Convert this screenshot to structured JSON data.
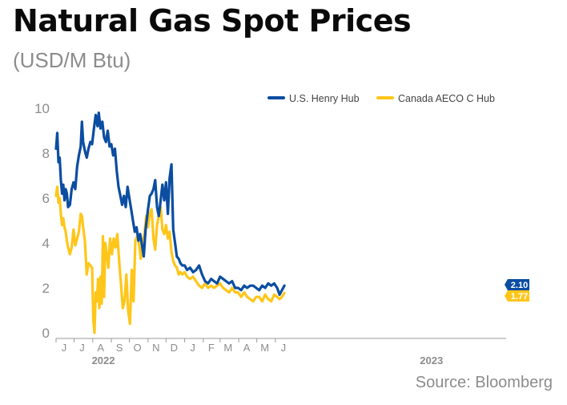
{
  "title": "Natural Gas Spot Prices",
  "subtitle": "(USD/M Btu)",
  "source": "Source: Bloomberg",
  "colors": {
    "henry": "#0b4da1",
    "aeco": "#ffc61a",
    "axis": "#9a9a9a",
    "tick_text": "#8c8c8c"
  },
  "chart_data": {
    "type": "line",
    "title": "Natural Gas Spot Prices",
    "subtitle": "(USD/M Btu)",
    "xlabel": "",
    "ylabel": "",
    "ylim": [
      0,
      10
    ],
    "xlim": [
      "2021-06-01",
      "2023-06-20"
    ],
    "y_ticks": [
      0,
      2,
      4,
      6,
      8,
      10
    ],
    "x_ticks": [
      {
        "date": "2021-06-01",
        "label": "J"
      },
      {
        "date": "2021-07-01",
        "label": "J"
      },
      {
        "date": "2021-08-01",
        "label": "A"
      },
      {
        "date": "2021-09-01",
        "label": "S"
      },
      {
        "date": "2021-10-01",
        "label": "O"
      },
      {
        "date": "2021-11-01",
        "label": "N"
      },
      {
        "date": "2021-12-01",
        "label": "D"
      },
      {
        "date": "2022-01-01",
        "label": "J"
      },
      {
        "date": "2022-02-01",
        "label": "F"
      },
      {
        "date": "2022-03-01",
        "label": "M"
      },
      {
        "date": "2022-04-01",
        "label": "A"
      },
      {
        "date": "2022-05-01",
        "label": "M"
      },
      {
        "date": "2022-06-01",
        "label": "J"
      }
    ],
    "year_labels": [
      {
        "date": "2021-09-01",
        "label": "2022"
      },
      {
        "date": "2023-03-01",
        "label": "2023"
      }
    ],
    "grid": false,
    "legend": "top-right",
    "series": [
      {
        "name": "U.S. Henry Hub",
        "color": "#0b4da1",
        "end_label": "2.10",
        "points": [
          [
            "2021-06-01",
            8.2
          ],
          [
            "2021-06-03",
            8.9
          ],
          [
            "2021-06-05",
            7.6
          ],
          [
            "2021-06-07",
            7.8
          ],
          [
            "2021-06-09",
            6.8
          ],
          [
            "2021-06-11",
            6.2
          ],
          [
            "2021-06-13",
            6.6
          ],
          [
            "2021-06-15",
            5.9
          ],
          [
            "2021-06-17",
            6.4
          ],
          [
            "2021-06-19",
            6.2
          ],
          [
            "2021-06-21",
            5.6
          ],
          [
            "2021-06-24",
            5.7
          ],
          [
            "2021-06-27",
            6.4
          ],
          [
            "2021-06-30",
            6.7
          ],
          [
            "2021-07-03",
            6.4
          ],
          [
            "2021-07-06",
            7.4
          ],
          [
            "2021-07-09",
            7.9
          ],
          [
            "2021-07-12",
            8.3
          ],
          [
            "2021-07-14",
            9.4
          ],
          [
            "2021-07-16",
            8.5
          ],
          [
            "2021-07-19",
            8.1
          ],
          [
            "2021-07-22",
            7.8
          ],
          [
            "2021-07-25",
            8.2
          ],
          [
            "2021-07-28",
            8.5
          ],
          [
            "2021-07-31",
            8.4
          ],
          [
            "2021-08-03",
            9.1
          ],
          [
            "2021-08-06",
            9.7
          ],
          [
            "2021-08-09",
            9.2
          ],
          [
            "2021-08-11",
            9.8
          ],
          [
            "2021-08-14",
            9.1
          ],
          [
            "2021-08-17",
            9.4
          ],
          [
            "2021-08-20",
            8.7
          ],
          [
            "2021-08-23",
            8.5
          ],
          [
            "2021-08-26",
            9.0
          ],
          [
            "2021-08-29",
            8.3
          ],
          [
            "2021-09-01",
            8.4
          ],
          [
            "2021-09-04",
            7.9
          ],
          [
            "2021-09-07",
            8.2
          ],
          [
            "2021-09-10",
            7.2
          ],
          [
            "2021-09-13",
            6.5
          ],
          [
            "2021-09-16",
            6.1
          ],
          [
            "2021-09-19",
            5.7
          ],
          [
            "2021-09-22",
            6.1
          ],
          [
            "2021-09-25",
            5.6
          ],
          [
            "2021-09-28",
            6.5
          ],
          [
            "2021-10-01",
            6.0
          ],
          [
            "2021-10-04",
            5.5
          ],
          [
            "2021-10-07",
            5.0
          ],
          [
            "2021-10-10",
            4.5
          ],
          [
            "2021-10-13",
            4.7
          ],
          [
            "2021-10-16",
            4.1
          ],
          [
            "2021-10-19",
            4.4
          ],
          [
            "2021-10-22",
            3.9
          ],
          [
            "2021-10-25",
            3.4
          ],
          [
            "2021-10-28",
            4.6
          ],
          [
            "2021-11-01",
            5.5
          ],
          [
            "2021-11-04",
            6.1
          ],
          [
            "2021-11-07",
            6.2
          ],
          [
            "2021-11-10",
            6.4
          ],
          [
            "2021-11-13",
            6.8
          ],
          [
            "2021-11-16",
            5.6
          ],
          [
            "2021-11-19",
            5.2
          ],
          [
            "2021-11-22",
            5.9
          ],
          [
            "2021-11-25",
            6.6
          ],
          [
            "2021-11-28",
            5.9
          ],
          [
            "2021-12-01",
            6.7
          ],
          [
            "2021-12-04",
            5.3
          ],
          [
            "2021-12-07",
            6.9
          ],
          [
            "2021-12-10",
            7.5
          ],
          [
            "2021-12-13",
            4.6
          ],
          [
            "2021-12-16",
            4.0
          ],
          [
            "2021-12-19",
            3.4
          ],
          [
            "2021-12-22",
            3.3
          ],
          [
            "2021-12-25",
            3.1
          ],
          [
            "2021-12-28",
            3.0
          ],
          [
            "2022-01-01",
            3.0
          ],
          [
            "2022-01-05",
            2.8
          ],
          [
            "2022-01-10",
            2.9
          ],
          [
            "2022-01-15",
            2.7
          ],
          [
            "2022-01-20",
            2.8
          ],
          [
            "2022-01-25",
            3.0
          ],
          [
            "2022-01-30",
            2.6
          ],
          [
            "2022-02-04",
            2.3
          ],
          [
            "2022-02-09",
            2.2
          ],
          [
            "2022-02-14",
            2.4
          ],
          [
            "2022-02-19",
            2.3
          ],
          [
            "2022-02-24",
            2.2
          ],
          [
            "2022-03-01",
            2.5
          ],
          [
            "2022-03-06",
            2.4
          ],
          [
            "2022-03-11",
            2.3
          ],
          [
            "2022-03-16",
            2.2
          ],
          [
            "2022-03-21",
            2.3
          ],
          [
            "2022-03-26",
            2.0
          ],
          [
            "2022-03-31",
            2.0
          ],
          [
            "2022-04-05",
            1.9
          ],
          [
            "2022-04-10",
            2.1
          ],
          [
            "2022-04-15",
            2.0
          ],
          [
            "2022-04-20",
            2.1
          ],
          [
            "2022-04-25",
            2.1
          ],
          [
            "2022-04-30",
            2.0
          ],
          [
            "2022-05-05",
            1.9
          ],
          [
            "2022-05-10",
            2.1
          ],
          [
            "2022-05-15",
            2.0
          ],
          [
            "2022-05-20",
            2.2
          ],
          [
            "2022-05-25",
            2.1
          ],
          [
            "2022-05-30",
            2.2
          ],
          [
            "2022-06-04",
            2.0
          ],
          [
            "2022-06-08",
            1.7
          ],
          [
            "2022-06-12",
            1.9
          ],
          [
            "2022-06-16",
            2.1
          ]
        ]
      },
      {
        "name": "Canada AECO C Hub",
        "color": "#ffc61a",
        "end_label": "1.77",
        "points": [
          [
            "2021-06-01",
            6.1
          ],
          [
            "2021-06-03",
            6.5
          ],
          [
            "2021-06-05",
            5.8
          ],
          [
            "2021-06-07",
            6.0
          ],
          [
            "2021-06-09",
            5.3
          ],
          [
            "2021-06-11",
            4.8
          ],
          [
            "2021-06-13",
            5.1
          ],
          [
            "2021-06-15",
            4.7
          ],
          [
            "2021-06-17",
            4.5
          ],
          [
            "2021-06-19",
            4.1
          ],
          [
            "2021-06-21",
            3.8
          ],
          [
            "2021-06-24",
            3.5
          ],
          [
            "2021-06-27",
            3.8
          ],
          [
            "2021-06-30",
            4.6
          ],
          [
            "2021-07-03",
            3.9
          ],
          [
            "2021-07-06",
            4.2
          ],
          [
            "2021-07-09",
            4.5
          ],
          [
            "2021-07-12",
            5.3
          ],
          [
            "2021-07-14",
            5.2
          ],
          [
            "2021-07-16",
            4.7
          ],
          [
            "2021-07-19",
            4.1
          ],
          [
            "2021-07-22",
            2.6
          ],
          [
            "2021-07-25",
            3.1
          ],
          [
            "2021-07-28",
            3.0
          ],
          [
            "2021-07-31",
            2.9
          ],
          [
            "2021-08-02",
            0.6
          ],
          [
            "2021-08-04",
            0.0
          ],
          [
            "2021-08-06",
            1.8
          ],
          [
            "2021-08-08",
            1.4
          ],
          [
            "2021-08-10",
            2.4
          ],
          [
            "2021-08-12",
            1.1
          ],
          [
            "2021-08-14",
            2.5
          ],
          [
            "2021-08-16",
            1.3
          ],
          [
            "2021-08-18",
            4.3
          ],
          [
            "2021-08-20",
            1.6
          ],
          [
            "2021-08-22",
            4.0
          ],
          [
            "2021-08-24",
            3.6
          ],
          [
            "2021-08-27",
            2.9
          ],
          [
            "2021-08-30",
            4.2
          ],
          [
            "2021-09-02",
            3.5
          ],
          [
            "2021-09-05",
            4.2
          ],
          [
            "2021-09-08",
            3.8
          ],
          [
            "2021-09-11",
            4.4
          ],
          [
            "2021-09-14",
            3.2
          ],
          [
            "2021-09-17",
            2.2
          ],
          [
            "2021-09-20",
            1.1
          ],
          [
            "2021-09-23",
            1.4
          ],
          [
            "2021-09-26",
            2.6
          ],
          [
            "2021-09-29",
            1.0
          ],
          [
            "2021-10-02",
            0.4
          ],
          [
            "2021-10-05",
            2.8
          ],
          [
            "2021-10-08",
            1.4
          ],
          [
            "2021-10-11",
            4.1
          ],
          [
            "2021-10-14",
            4.3
          ],
          [
            "2021-10-17",
            4.0
          ],
          [
            "2021-10-20",
            3.3
          ],
          [
            "2021-10-23",
            4.0
          ],
          [
            "2021-10-26",
            4.4
          ],
          [
            "2021-10-29",
            5.2
          ],
          [
            "2021-11-01",
            4.7
          ],
          [
            "2021-11-04",
            5.3
          ],
          [
            "2021-11-07",
            5.5
          ],
          [
            "2021-11-10",
            4.2
          ],
          [
            "2021-11-13",
            3.7
          ],
          [
            "2021-11-16",
            4.8
          ],
          [
            "2021-11-19",
            5.2
          ],
          [
            "2021-11-22",
            5.6
          ],
          [
            "2021-11-25",
            4.6
          ],
          [
            "2021-11-28",
            4.4
          ],
          [
            "2021-12-01",
            4.8
          ],
          [
            "2021-12-04",
            4.2
          ],
          [
            "2021-12-07",
            4.5
          ],
          [
            "2021-12-10",
            3.6
          ],
          [
            "2021-12-13",
            3.2
          ],
          [
            "2021-12-16",
            3.0
          ],
          [
            "2021-12-19",
            2.9
          ],
          [
            "2021-12-22",
            2.6
          ],
          [
            "2021-12-25",
            2.7
          ],
          [
            "2021-12-28",
            2.6
          ],
          [
            "2022-01-01",
            2.7
          ],
          [
            "2022-01-05",
            2.5
          ],
          [
            "2022-01-10",
            2.4
          ],
          [
            "2022-01-15",
            2.5
          ],
          [
            "2022-01-20",
            2.3
          ],
          [
            "2022-01-25",
            2.1
          ],
          [
            "2022-01-30",
            2.0
          ],
          [
            "2022-02-04",
            2.2
          ],
          [
            "2022-02-09",
            2.0
          ],
          [
            "2022-02-14",
            2.1
          ],
          [
            "2022-02-19",
            2.0
          ],
          [
            "2022-02-24",
            2.1
          ],
          [
            "2022-03-01",
            2.2
          ],
          [
            "2022-03-06",
            2.0
          ],
          [
            "2022-03-11",
            1.9
          ],
          [
            "2022-03-16",
            1.8
          ],
          [
            "2022-03-21",
            2.0
          ],
          [
            "2022-03-26",
            1.8
          ],
          [
            "2022-03-31",
            1.8
          ],
          [
            "2022-04-05",
            1.6
          ],
          [
            "2022-04-10",
            1.8
          ],
          [
            "2022-04-15",
            1.6
          ],
          [
            "2022-04-20",
            1.5
          ],
          [
            "2022-04-25",
            1.4
          ],
          [
            "2022-04-30",
            1.6
          ],
          [
            "2022-05-05",
            1.6
          ],
          [
            "2022-05-10",
            1.4
          ],
          [
            "2022-05-15",
            1.7
          ],
          [
            "2022-05-20",
            1.5
          ],
          [
            "2022-05-25",
            1.4
          ],
          [
            "2022-05-30",
            1.7
          ],
          [
            "2022-06-04",
            1.6
          ],
          [
            "2022-06-08",
            1.5
          ],
          [
            "2022-06-12",
            1.6
          ],
          [
            "2022-06-16",
            1.77
          ]
        ]
      }
    ]
  }
}
